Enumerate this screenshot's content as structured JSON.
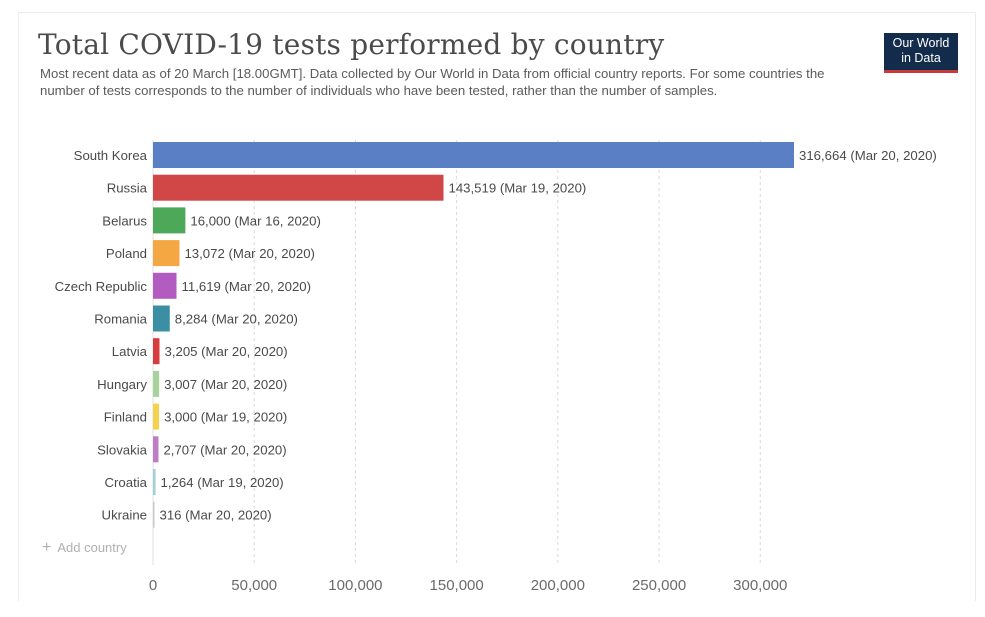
{
  "header": {
    "title": "Total COVID-19 tests performed by country",
    "subtitle": "Most recent data as of 20 March [18.00GMT]. Data collected by Our World in Data from official country reports. For some countries the number of tests corresponds to the number of individuals who have been tested, rather than the number of samples.",
    "logo_line1": "Our World",
    "logo_line2": "in Data"
  },
  "controls": {
    "add_country_icon": "plus-icon",
    "add_country_label": "Add country"
  },
  "chart_data": {
    "type": "bar",
    "orientation": "horizontal",
    "title": "Total COVID-19 tests performed by country",
    "xlim": [
      0,
      316664
    ],
    "xticks": [
      0,
      50000,
      100000,
      150000,
      200000,
      250000,
      300000
    ],
    "xtick_labels": [
      "0",
      "50,000",
      "100,000",
      "150,000",
      "200,000",
      "250,000",
      "300,000"
    ],
    "grid": "vertical dashed",
    "categories": [
      "South Korea",
      "Russia",
      "Belarus",
      "Poland",
      "Czech Republic",
      "Romania",
      "Latvia",
      "Hungary",
      "Finland",
      "Slovakia",
      "Croatia",
      "Ukraine"
    ],
    "values": [
      316664,
      143519,
      16000,
      13072,
      11619,
      8284,
      3205,
      3007,
      3000,
      2707,
      1264,
      316
    ],
    "value_labels": [
      "316,664 (Mar 20, 2020)",
      "143,519 (Mar 19, 2020)",
      "16,000 (Mar 16, 2020)",
      "13,072 (Mar 20, 2020)",
      "11,619 (Mar 20, 2020)",
      "8,284 (Mar 20, 2020)",
      "3,205 (Mar 20, 2020)",
      "3,007 (Mar 20, 2020)",
      "3,000 (Mar 19, 2020)",
      "2,707 (Mar 20, 2020)",
      "1,264 (Mar 19, 2020)",
      "316 (Mar 20, 2020)"
    ],
    "colors": [
      "#5b7fc4",
      "#d14747",
      "#4ea85a",
      "#f4a742",
      "#b25cc2",
      "#3b8fa3",
      "#d63c3c",
      "#a6d39a",
      "#f5d24e",
      "#bd7dc2",
      "#9fd1d6",
      "#c9c9c9"
    ]
  }
}
